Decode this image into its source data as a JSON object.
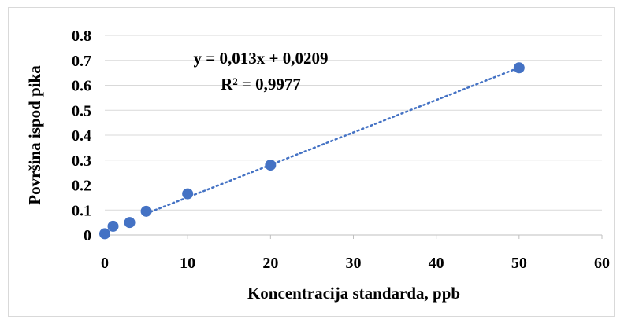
{
  "chart_data": {
    "type": "scatter",
    "title": "",
    "xlabel": "Koncentracija standarda, ppb",
    "ylabel": "Površina ispod pika",
    "xlim": [
      0,
      60
    ],
    "ylim": [
      0,
      0.8
    ],
    "xticks": [
      "0",
      "10",
      "20",
      "30",
      "40",
      "50",
      "60"
    ],
    "yticks": [
      "0",
      "0.1",
      "0.2",
      "0.3",
      "0.4",
      "0.5",
      "0.6",
      "0.7",
      "0.8"
    ],
    "grid": "horizontal",
    "legend": "none",
    "series": [
      {
        "x": [
          0,
          1,
          3,
          5,
          10,
          20,
          50
        ],
        "y": [
          0.005,
          0.035,
          0.05,
          0.095,
          0.165,
          0.28,
          0.67
        ],
        "color": "#4472c4"
      }
    ],
    "trendline": {
      "type": "linear",
      "style": "dotted",
      "color": "#4472c4",
      "slope": 0.013,
      "intercept": 0.0209,
      "x_range": [
        5,
        50
      ],
      "equation_label": "y = 0,013x + 0,0209",
      "r2_label": "R² = 0,9977"
    }
  }
}
